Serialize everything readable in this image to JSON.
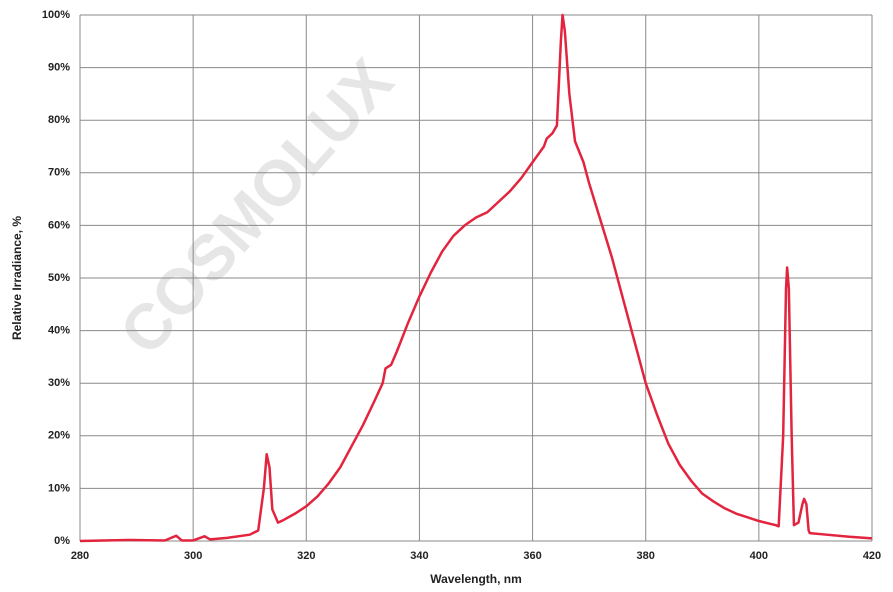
{
  "chart_data": {
    "type": "line",
    "xlabel": "Wavelength, nm",
    "ylabel": "Relative Irradiance, %",
    "watermark": "COSMOLUX",
    "color": "#e3243f",
    "grid": true,
    "xlim": [
      280,
      420
    ],
    "ylim": [
      0,
      100
    ],
    "xticks": [
      280,
      300,
      320,
      340,
      360,
      380,
      400,
      420
    ],
    "yticks": [
      {
        "value": 0,
        "label": "0%"
      },
      {
        "value": 10,
        "label": "10%"
      },
      {
        "value": 20,
        "label": "20%"
      },
      {
        "value": 30,
        "label": "30%"
      },
      {
        "value": 40,
        "label": "40%"
      },
      {
        "value": 50,
        "label": "50%"
      },
      {
        "value": 60,
        "label": "60%"
      },
      {
        "value": 70,
        "label": "70%"
      },
      {
        "value": 80,
        "label": "80%"
      },
      {
        "value": 90,
        "label": "90%"
      },
      {
        "value": 100,
        "label": "100%"
      }
    ],
    "x": [
      280,
      289,
      295,
      297,
      298,
      300,
      302,
      303,
      306,
      310,
      311.5,
      312.5,
      313,
      313.5,
      314,
      315,
      316,
      318,
      320,
      322,
      324,
      326,
      328,
      330,
      332,
      333.5,
      334,
      335,
      336,
      338,
      340,
      342,
      344,
      346,
      348,
      350,
      352,
      354,
      356,
      358,
      360,
      362,
      362.5,
      363.5,
      364.3,
      365,
      365.3,
      365.7,
      366.5,
      367.5,
      369,
      370,
      372,
      374,
      376,
      378,
      380,
      382,
      384,
      386,
      388,
      390,
      392,
      394,
      396,
      398,
      400,
      403,
      403.5,
      404.3,
      404.8,
      405,
      405.3,
      405.8,
      406.2,
      407,
      407.7,
      408,
      408.4,
      408.8,
      409,
      412,
      416,
      420
    ],
    "values": [
      0,
      0.2,
      0.1,
      1.0,
      0.1,
      0.1,
      0.9,
      0.3,
      0.6,
      1.2,
      2,
      10,
      16.5,
      14,
      6,
      3.5,
      4,
      5.2,
      6.6,
      8.5,
      11,
      14,
      18,
      22,
      26.5,
      30,
      32.8,
      33.5,
      36,
      41.5,
      46.5,
      51,
      55,
      58,
      60,
      61.5,
      62.5,
      64.5,
      66.5,
      69,
      72,
      75,
      76.5,
      77.5,
      79,
      95,
      100,
      97,
      85,
      76,
      72,
      68,
      61,
      54,
      46,
      38,
      30,
      24,
      18.5,
      14.5,
      11.5,
      9,
      7.5,
      6.2,
      5.2,
      4.5,
      3.8,
      3.0,
      2.8,
      20,
      48,
      52,
      48,
      20,
      3,
      3.5,
      7,
      8,
      7,
      2,
      1.5,
      1.2,
      0.8,
      0.5
    ]
  }
}
